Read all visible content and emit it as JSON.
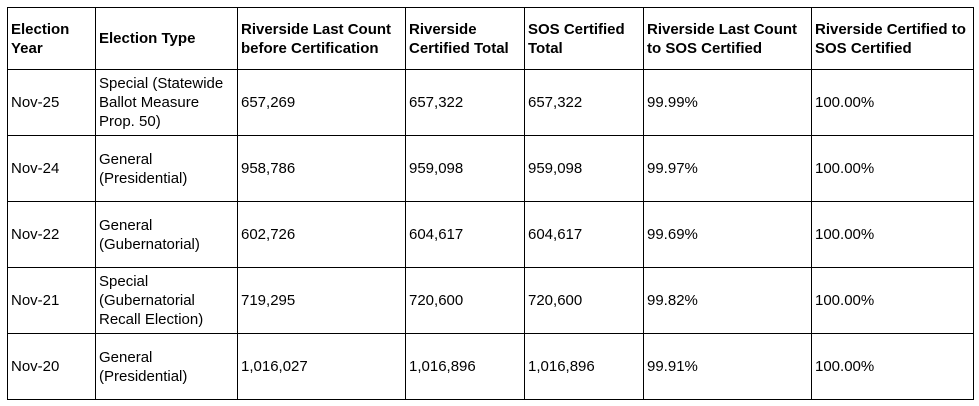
{
  "table": {
    "header": [
      "Election Year",
      "Election Type",
      "Riverside Last Count before Certification",
      "Riverside Certified Total",
      "SOS Certified Total",
      "Riverside Last Count to SOS Certified",
      "Riverside Certified to SOS Certified"
    ],
    "rows": [
      [
        "Nov-25",
        "Special (Statewide Ballot Measure Prop. 50)",
        "657,269",
        "657,322",
        "657,322",
        "99.99%",
        "100.00%"
      ],
      [
        "Nov-24",
        "General (Presidential)",
        "958,786",
        "959,098",
        "959,098",
        "99.97%",
        "100.00%"
      ],
      [
        "Nov-22",
        "General (Gubernatorial)",
        "602,726",
        "604,617",
        "604,617",
        "99.69%",
        "100.00%"
      ],
      [
        "Nov-21",
        "Special (Gubernatorial Recall Election)",
        "719,295",
        "720,600",
        "720,600",
        "99.82%",
        "100.00%"
      ],
      [
        "Nov-20",
        "General (Presidential)",
        "1,016,027",
        "1,016,896",
        "1,016,896",
        "99.91%",
        "100.00%"
      ]
    ]
  }
}
